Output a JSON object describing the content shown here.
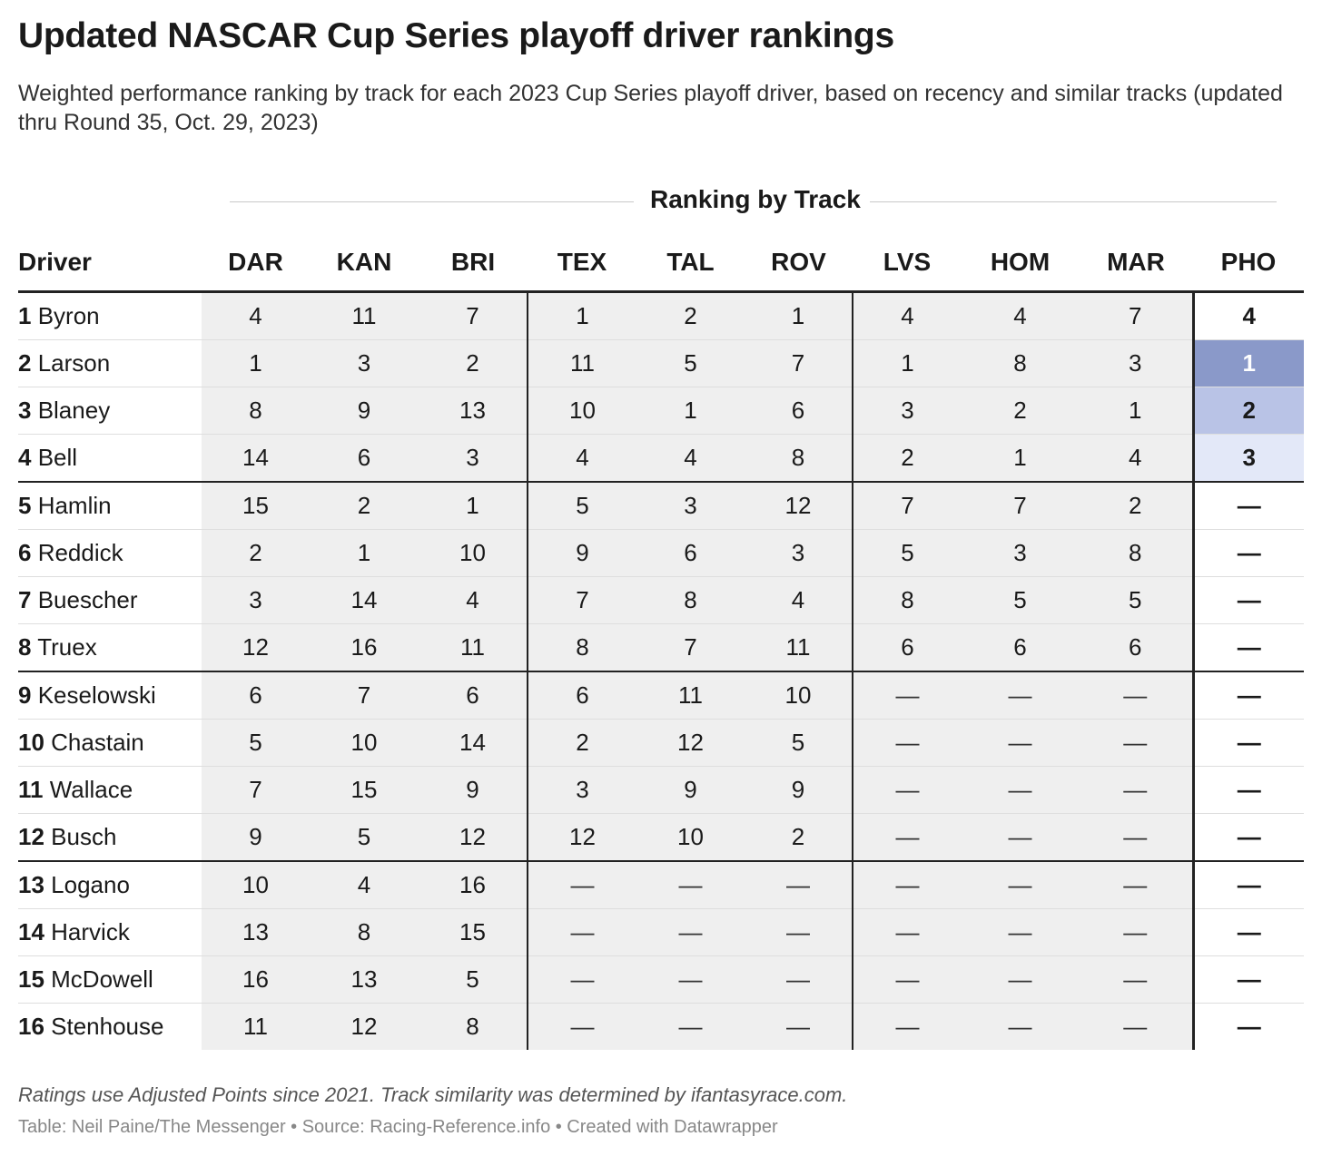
{
  "title": "Updated NASCAR Cup Series playoff driver rankings",
  "subtitle": "Weighted performance ranking by track for each 2023 Cup Series playoff driver, based on recency and similar tracks (updated thru Round 35, Oct. 29, 2023)",
  "group_header": "Ranking by Track",
  "footnote": "Ratings use Adjusted Points since 2021. Track similarity was determined by ifantasyrace.com.",
  "credit": "Table: Neil Paine/The Messenger • Source: Racing-Reference.info • Created with Datawrapper",
  "colors": {
    "pho_rank_1": "#8a99c9",
    "pho_rank_2": "#b9c3e6",
    "pho_rank_3": "#e3e8f8",
    "cell_bg": "#efefef",
    "rule": "#222222"
  },
  "chart_data": {
    "type": "table",
    "columns": [
      "Driver",
      "DAR",
      "KAN",
      "BRI",
      "TEX",
      "TAL",
      "ROV",
      "LVS",
      "HOM",
      "MAR",
      "PHO"
    ],
    "rows": [
      {
        "rank": "1",
        "driver": "Byron",
        "values": [
          "4",
          "11",
          "7",
          "1",
          "2",
          "1",
          "4",
          "4",
          "7",
          "4"
        ]
      },
      {
        "rank": "2",
        "driver": "Larson",
        "values": [
          "1",
          "3",
          "2",
          "11",
          "5",
          "7",
          "1",
          "8",
          "3",
          "1"
        ]
      },
      {
        "rank": "3",
        "driver": "Blaney",
        "values": [
          "8",
          "9",
          "13",
          "10",
          "1",
          "6",
          "3",
          "2",
          "1",
          "2"
        ]
      },
      {
        "rank": "4",
        "driver": "Bell",
        "values": [
          "14",
          "6",
          "3",
          "4",
          "4",
          "8",
          "2",
          "1",
          "4",
          "3"
        ]
      },
      {
        "rank": "5",
        "driver": "Hamlin",
        "values": [
          "15",
          "2",
          "1",
          "5",
          "3",
          "12",
          "7",
          "7",
          "2",
          "—"
        ]
      },
      {
        "rank": "6",
        "driver": "Reddick",
        "values": [
          "2",
          "1",
          "10",
          "9",
          "6",
          "3",
          "5",
          "3",
          "8",
          "—"
        ]
      },
      {
        "rank": "7",
        "driver": "Buescher",
        "values": [
          "3",
          "14",
          "4",
          "7",
          "8",
          "4",
          "8",
          "5",
          "5",
          "—"
        ]
      },
      {
        "rank": "8",
        "driver": "Truex",
        "values": [
          "12",
          "16",
          "11",
          "8",
          "7",
          "11",
          "6",
          "6",
          "6",
          "—"
        ]
      },
      {
        "rank": "9",
        "driver": "Keselowski",
        "values": [
          "6",
          "7",
          "6",
          "6",
          "11",
          "10",
          "—",
          "—",
          "—",
          "—"
        ]
      },
      {
        "rank": "10",
        "driver": "Chastain",
        "values": [
          "5",
          "10",
          "14",
          "2",
          "12",
          "5",
          "—",
          "—",
          "—",
          "—"
        ]
      },
      {
        "rank": "11",
        "driver": "Wallace",
        "values": [
          "7",
          "15",
          "9",
          "3",
          "9",
          "9",
          "—",
          "—",
          "—",
          "—"
        ]
      },
      {
        "rank": "12",
        "driver": "Busch",
        "values": [
          "9",
          "5",
          "12",
          "12",
          "10",
          "2",
          "—",
          "—",
          "—",
          "—"
        ]
      },
      {
        "rank": "13",
        "driver": "Logano",
        "values": [
          "10",
          "4",
          "16",
          "—",
          "—",
          "—",
          "—",
          "—",
          "—",
          "—"
        ]
      },
      {
        "rank": "14",
        "driver": "Harvick",
        "values": [
          "13",
          "8",
          "15",
          "—",
          "—",
          "—",
          "—",
          "—",
          "—",
          "—"
        ]
      },
      {
        "rank": "15",
        "driver": "McDowell",
        "values": [
          "16",
          "13",
          "5",
          "—",
          "—",
          "—",
          "—",
          "—",
          "—",
          "—"
        ]
      },
      {
        "rank": "16",
        "driver": "Stenhouse",
        "values": [
          "11",
          "12",
          "8",
          "—",
          "—",
          "—",
          "—",
          "—",
          "—",
          "—"
        ]
      }
    ]
  }
}
